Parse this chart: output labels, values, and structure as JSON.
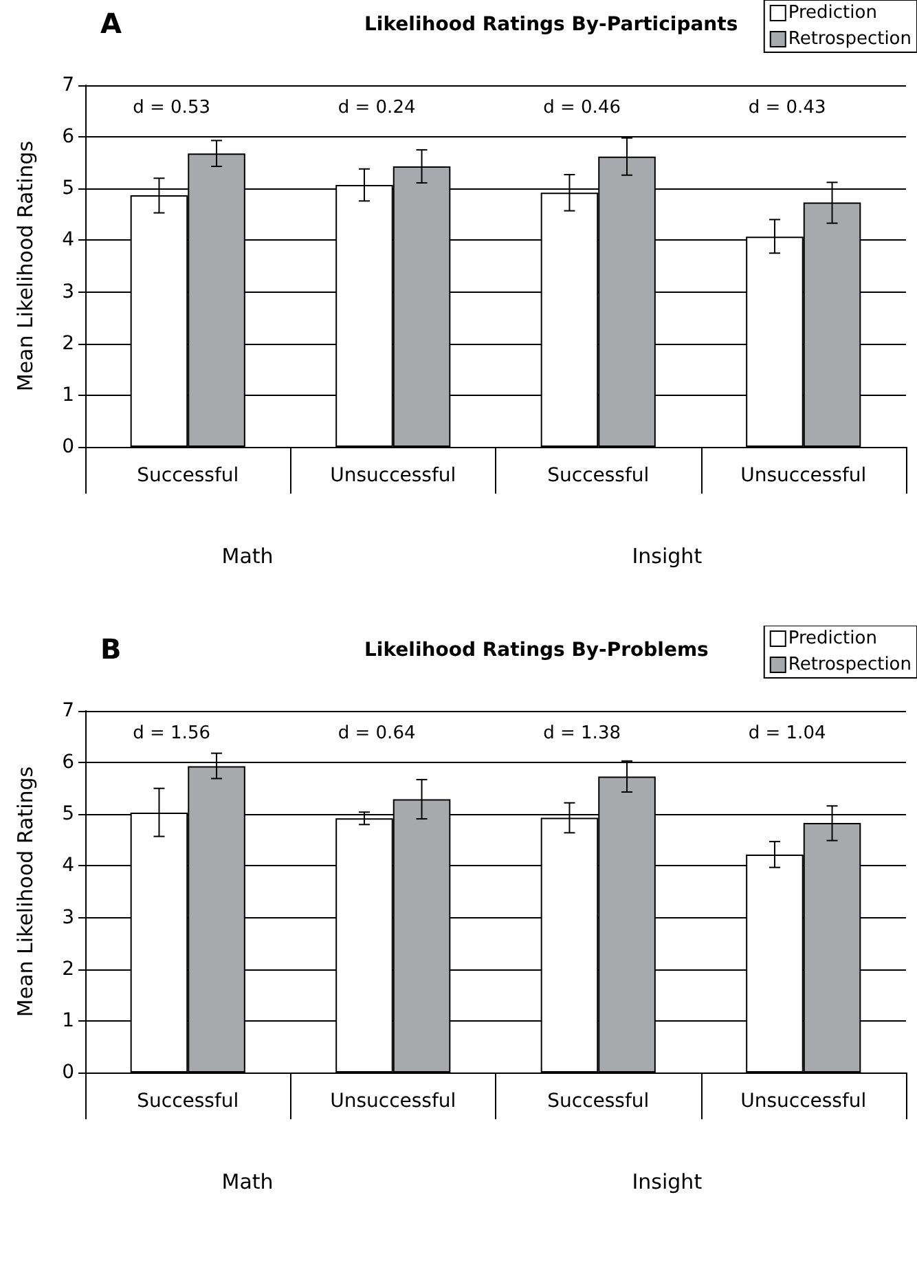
{
  "chart_data": [
    {
      "type": "bar",
      "subtitle": "A",
      "title": "Likelihood Ratings By-Participants",
      "ylabel": "Mean Likelihood Ratings",
      "categories": [
        "Successful",
        "Unsuccessful",
        "Successful",
        "Unsuccessful"
      ],
      "series": [
        {
          "name": "Prediction",
          "color": "#ffffff",
          "values": [
            4.87,
            5.07,
            4.92,
            4.07
          ],
          "errors": [
            [
              4.53,
              5.2
            ],
            [
              4.76,
              5.38
            ],
            [
              4.57,
              5.27
            ],
            [
              3.75,
              4.4
            ]
          ]
        },
        {
          "name": "Retrospection",
          "color": "#a7a9ac",
          "values": [
            5.68,
            5.43,
            5.62,
            4.73
          ],
          "errors": [
            [
              5.43,
              5.93
            ],
            [
              5.11,
              5.75
            ],
            [
              5.26,
              5.98
            ],
            [
              4.33,
              5.12
            ]
          ]
        }
      ],
      "annotations": [
        "d = 0.53",
        "d = 0.24",
        "d = 0.46",
        "d = 0.43",
        "Math",
        "Insight"
      ],
      "ylim": [
        0,
        7
      ],
      "yticks": [
        0,
        1,
        2,
        3,
        4,
        5,
        6,
        7
      ],
      "grid": "y",
      "legend": "top right"
    },
    {
      "type": "bar",
      "subtitle": "B",
      "title": "Likelihood Ratings By-Problems",
      "ylabel": "Mean Likelihood Ratings",
      "categories": [
        "Successful",
        "Unsuccessful",
        "Successful",
        "Unsuccessful"
      ],
      "series": [
        {
          "name": "Prediction",
          "color": "#ffffff",
          "values": [
            5.03,
            4.92,
            4.93,
            4.22
          ],
          "errors": [
            [
              4.57,
              5.5
            ],
            [
              4.8,
              5.04
            ],
            [
              4.64,
              5.22
            ],
            [
              3.97,
              4.47
            ]
          ]
        },
        {
          "name": "Retrospection",
          "color": "#a7a9ac",
          "values": [
            5.93,
            5.29,
            5.73,
            4.83
          ],
          "errors": [
            [
              5.69,
              6.18
            ],
            [
              4.91,
              5.67
            ],
            [
              5.43,
              6.03
            ],
            [
              4.49,
              5.16
            ]
          ]
        }
      ],
      "annotations": [
        "d = 1.56",
        "d = 0.64",
        "d = 1.38",
        "d = 1.04",
        "Math",
        "Insight"
      ],
      "ylim": [
        0,
        7
      ],
      "yticks": [
        0,
        1,
        2,
        3,
        4,
        5,
        6,
        7
      ],
      "grid": "y",
      "legend": "top right"
    }
  ]
}
